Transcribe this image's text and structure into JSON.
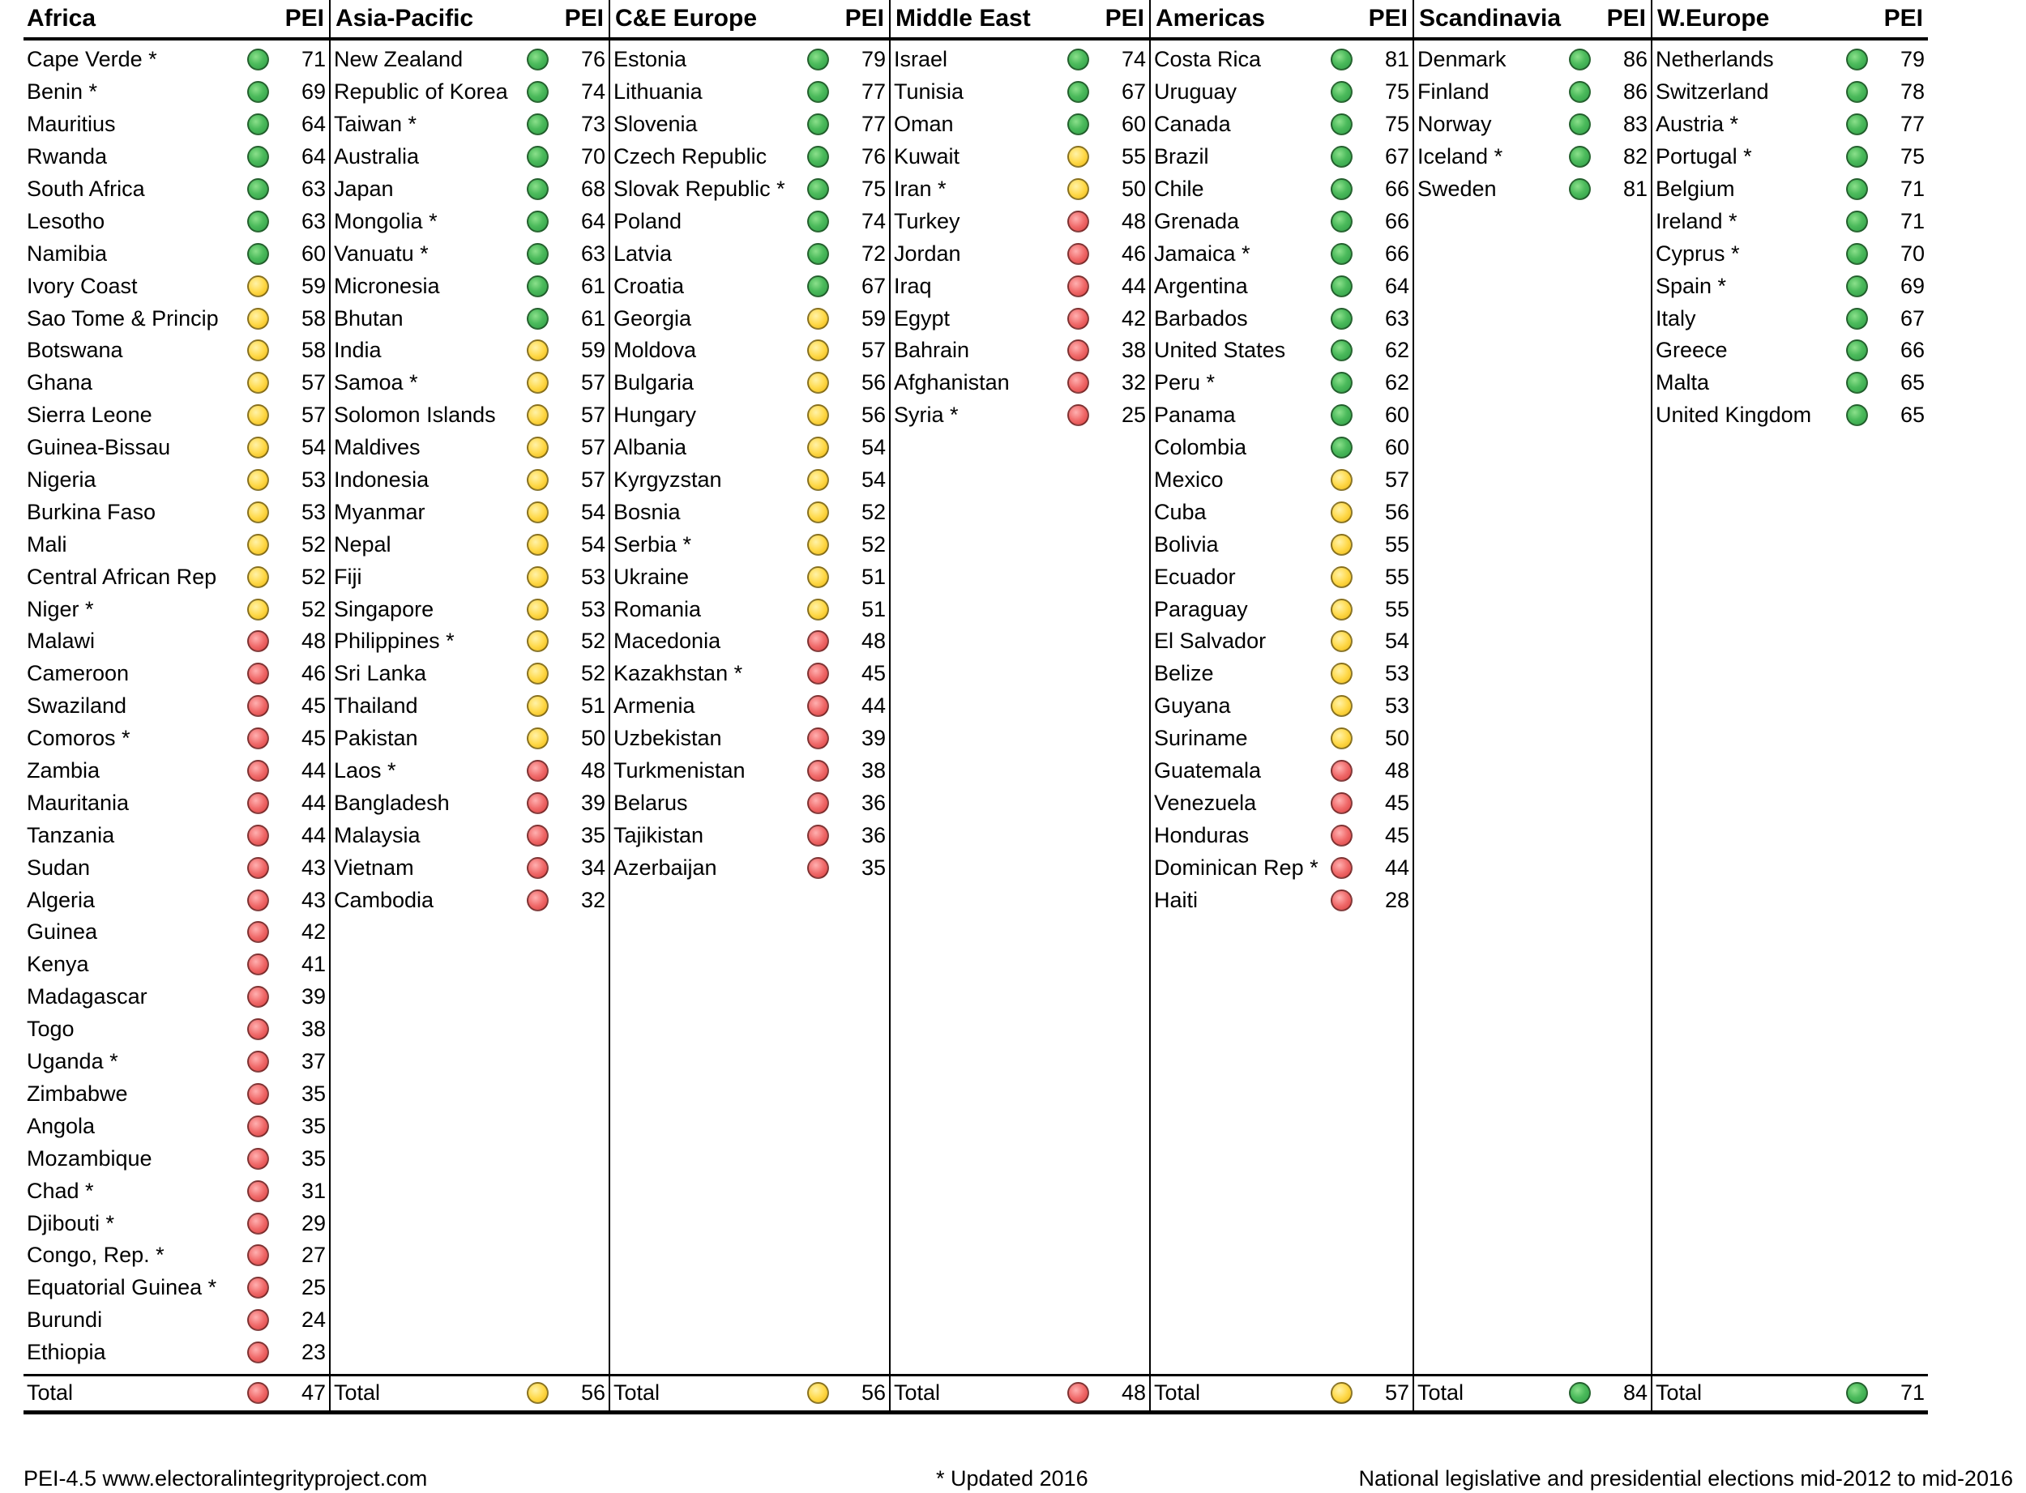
{
  "score_header": "PEI",
  "regions": [
    {
      "name": "Africa",
      "total": {
        "label": "Total",
        "value": "47",
        "rating": "red"
      },
      "rows": [
        [
          "Cape Verde *",
          "green",
          "71"
        ],
        [
          "Benin *",
          "green",
          "69"
        ],
        [
          "Mauritius",
          "green",
          "64"
        ],
        [
          "Rwanda",
          "green",
          "64"
        ],
        [
          "South Africa",
          "green",
          "63"
        ],
        [
          "Lesotho",
          "green",
          "63"
        ],
        [
          "Namibia",
          "green",
          "60"
        ],
        [
          "Ivory Coast",
          "yellow",
          "59"
        ],
        [
          "Sao Tome & Princip",
          "yellow",
          "58"
        ],
        [
          "Botswana",
          "yellow",
          "58"
        ],
        [
          "Ghana",
          "yellow",
          "57"
        ],
        [
          "Sierra Leone",
          "yellow",
          "57"
        ],
        [
          "Guinea-Bissau",
          "yellow",
          "54"
        ],
        [
          "Nigeria",
          "yellow",
          "53"
        ],
        [
          "Burkina Faso",
          "yellow",
          "53"
        ],
        [
          "Mali",
          "yellow",
          "52"
        ],
        [
          "Central African Rep",
          "yellow",
          "52"
        ],
        [
          "Niger *",
          "yellow",
          "52"
        ],
        [
          "Malawi",
          "red",
          "48"
        ],
        [
          "Cameroon",
          "red",
          "46"
        ],
        [
          "Swaziland",
          "red",
          "45"
        ],
        [
          "Comoros *",
          "red",
          "45"
        ],
        [
          "Zambia",
          "red",
          "44"
        ],
        [
          "Mauritania",
          "red",
          "44"
        ],
        [
          "Tanzania",
          "red",
          "44"
        ],
        [
          "Sudan",
          "red",
          "43"
        ],
        [
          "Algeria",
          "red",
          "43"
        ],
        [
          "Guinea",
          "red",
          "42"
        ],
        [
          "Kenya",
          "red",
          "41"
        ],
        [
          "Madagascar",
          "red",
          "39"
        ],
        [
          "Togo",
          "red",
          "38"
        ],
        [
          "Uganda *",
          "red",
          "37"
        ],
        [
          "Zimbabwe",
          "red",
          "35"
        ],
        [
          "Angola",
          "red",
          "35"
        ],
        [
          "Mozambique",
          "red",
          "35"
        ],
        [
          "Chad *",
          "red",
          "31"
        ],
        [
          "Djibouti *",
          "red",
          "29"
        ],
        [
          "Congo, Rep. *",
          "red",
          "27"
        ],
        [
          "Equatorial Guinea *",
          "red",
          "25"
        ],
        [
          "Burundi",
          "red",
          "24"
        ],
        [
          "Ethiopia",
          "red",
          "23"
        ]
      ]
    },
    {
      "name": "Asia-Pacific",
      "total": {
        "label": "Total",
        "value": "56",
        "rating": "yellow"
      },
      "rows": [
        [
          "New Zealand",
          "green",
          "76"
        ],
        [
          "Republic of Korea",
          "green",
          "74"
        ],
        [
          "Taiwan *",
          "green",
          "73"
        ],
        [
          "Australia",
          "green",
          "70"
        ],
        [
          "Japan",
          "green",
          "68"
        ],
        [
          "Mongolia *",
          "green",
          "64"
        ],
        [
          "Vanuatu *",
          "green",
          "63"
        ],
        [
          "Micronesia",
          "green",
          "61"
        ],
        [
          "Bhutan",
          "green",
          "61"
        ],
        [
          "India",
          "yellow",
          "59"
        ],
        [
          "Samoa *",
          "yellow",
          "57"
        ],
        [
          "Solomon Islands",
          "yellow",
          "57"
        ],
        [
          "Maldives",
          "yellow",
          "57"
        ],
        [
          "Indonesia",
          "yellow",
          "57"
        ],
        [
          "Myanmar",
          "yellow",
          "54"
        ],
        [
          "Nepal",
          "yellow",
          "54"
        ],
        [
          "Fiji",
          "yellow",
          "53"
        ],
        [
          "Singapore",
          "yellow",
          "53"
        ],
        [
          "Philippines *",
          "yellow",
          "52"
        ],
        [
          "Sri Lanka",
          "yellow",
          "52"
        ],
        [
          "Thailand",
          "yellow",
          "51"
        ],
        [
          "Pakistan",
          "yellow",
          "50"
        ],
        [
          "Laos *",
          "red",
          "48"
        ],
        [
          "Bangladesh",
          "red",
          "39"
        ],
        [
          "Malaysia",
          "red",
          "35"
        ],
        [
          "Vietnam",
          "red",
          "34"
        ],
        [
          "Cambodia",
          "red",
          "32"
        ]
      ]
    },
    {
      "name": "C&E Europe",
      "total": {
        "label": "Total",
        "value": "56",
        "rating": "yellow"
      },
      "rows": [
        [
          "Estonia",
          "green",
          "79"
        ],
        [
          "Lithuania",
          "green",
          "77"
        ],
        [
          "Slovenia",
          "green",
          "77"
        ],
        [
          "Czech Republic",
          "green",
          "76"
        ],
        [
          "Slovak Republic *",
          "green",
          "75"
        ],
        [
          "Poland",
          "green",
          "74"
        ],
        [
          "Latvia",
          "green",
          "72"
        ],
        [
          "Croatia",
          "green",
          "67"
        ],
        [
          "Georgia",
          "yellow",
          "59"
        ],
        [
          "Moldova",
          "yellow",
          "57"
        ],
        [
          "Bulgaria",
          "yellow",
          "56"
        ],
        [
          "Hungary",
          "yellow",
          "56"
        ],
        [
          "Albania",
          "yellow",
          "54"
        ],
        [
          "Kyrgyzstan",
          "yellow",
          "54"
        ],
        [
          "Bosnia",
          "yellow",
          "52"
        ],
        [
          "Serbia *",
          "yellow",
          "52"
        ],
        [
          "Ukraine",
          "yellow",
          "51"
        ],
        [
          "Romania",
          "yellow",
          "51"
        ],
        [
          "Macedonia",
          "red",
          "48"
        ],
        [
          "Kazakhstan *",
          "red",
          "45"
        ],
        [
          "Armenia",
          "red",
          "44"
        ],
        [
          "Uzbekistan",
          "red",
          "39"
        ],
        [
          "Turkmenistan",
          "red",
          "38"
        ],
        [
          "Belarus",
          "red",
          "36"
        ],
        [
          "Tajikistan",
          "red",
          "36"
        ],
        [
          "Azerbaijan",
          "red",
          "35"
        ]
      ]
    },
    {
      "name": "Middle East",
      "total": {
        "label": "Total",
        "value": "48",
        "rating": "red"
      },
      "rows": [
        [
          "Israel",
          "green",
          "74"
        ],
        [
          "Tunisia",
          "green",
          "67"
        ],
        [
          "Oman",
          "green",
          "60"
        ],
        [
          "Kuwait",
          "yellow",
          "55"
        ],
        [
          "Iran *",
          "yellow",
          "50"
        ],
        [
          "Turkey",
          "red",
          "48"
        ],
        [
          "Jordan",
          "red",
          "46"
        ],
        [
          "Iraq",
          "red",
          "44"
        ],
        [
          "Egypt",
          "red",
          "42"
        ],
        [
          "Bahrain",
          "red",
          "38"
        ],
        [
          "Afghanistan",
          "red",
          "32"
        ],
        [
          "Syria *",
          "red",
          "25"
        ]
      ]
    },
    {
      "name": "Americas",
      "total": {
        "label": "Total",
        "value": "57",
        "rating": "yellow"
      },
      "rows": [
        [
          "Costa Rica",
          "green",
          "81"
        ],
        [
          "Uruguay",
          "green",
          "75"
        ],
        [
          "Canada",
          "green",
          "75"
        ],
        [
          "Brazil",
          "green",
          "67"
        ],
        [
          "Chile",
          "green",
          "66"
        ],
        [
          "Grenada",
          "green",
          "66"
        ],
        [
          "Jamaica *",
          "green",
          "66"
        ],
        [
          "Argentina",
          "green",
          "64"
        ],
        [
          "Barbados",
          "green",
          "63"
        ],
        [
          "United States",
          "green",
          "62"
        ],
        [
          "Peru *",
          "green",
          "62"
        ],
        [
          "Panama",
          "green",
          "60"
        ],
        [
          "Colombia",
          "green",
          "60"
        ],
        [
          "Mexico",
          "yellow",
          "57"
        ],
        [
          "Cuba",
          "yellow",
          "56"
        ],
        [
          "Bolivia",
          "yellow",
          "55"
        ],
        [
          "Ecuador",
          "yellow",
          "55"
        ],
        [
          "Paraguay",
          "yellow",
          "55"
        ],
        [
          "El Salvador",
          "yellow",
          "54"
        ],
        [
          "Belize",
          "yellow",
          "53"
        ],
        [
          "Guyana",
          "yellow",
          "53"
        ],
        [
          "Suriname",
          "yellow",
          "50"
        ],
        [
          "Guatemala",
          "red",
          "48"
        ],
        [
          "Venezuela",
          "red",
          "45"
        ],
        [
          "Honduras",
          "red",
          "45"
        ],
        [
          "Dominican Rep *",
          "red",
          "44"
        ],
        [
          "Haiti",
          "red",
          "28"
        ]
      ]
    },
    {
      "name": "Scandinavia",
      "total": {
        "label": "Total",
        "value": "84",
        "rating": "green"
      },
      "rows": [
        [
          "Denmark",
          "green",
          "86"
        ],
        [
          "Finland",
          "green",
          "86"
        ],
        [
          "Norway",
          "green",
          "83"
        ],
        [
          "Iceland *",
          "green",
          "82"
        ],
        [
          "Sweden",
          "green",
          "81"
        ]
      ]
    },
    {
      "name": "W.Europe",
      "total": {
        "label": "Total",
        "value": "71",
        "rating": "green"
      },
      "rows": [
        [
          "Netherlands",
          "green",
          "79"
        ],
        [
          "Switzerland",
          "green",
          "78"
        ],
        [
          "Austria *",
          "green",
          "77"
        ],
        [
          "Portugal *",
          "green",
          "75"
        ],
        [
          "Belgium",
          "green",
          "71"
        ],
        [
          "Ireland *",
          "green",
          "71"
        ],
        [
          "Cyprus *",
          "green",
          "70"
        ],
        [
          "Spain *",
          "green",
          "69"
        ],
        [
          "Italy",
          "green",
          "67"
        ],
        [
          "Greece",
          "green",
          "66"
        ],
        [
          "Malta",
          "green",
          "65"
        ],
        [
          "United Kingdom",
          "green",
          "65"
        ]
      ]
    }
  ],
  "footer": {
    "left": "PEI-4.5 www.electoralintegrityproject.com",
    "center": "* Updated 2016",
    "right": "National legislative and presidential elections mid-2012 to mid-2016"
  },
  "rating_colors": {
    "green": "#4cbb5c",
    "yellow": "#ffd94a",
    "red": "#f06a6a"
  }
}
